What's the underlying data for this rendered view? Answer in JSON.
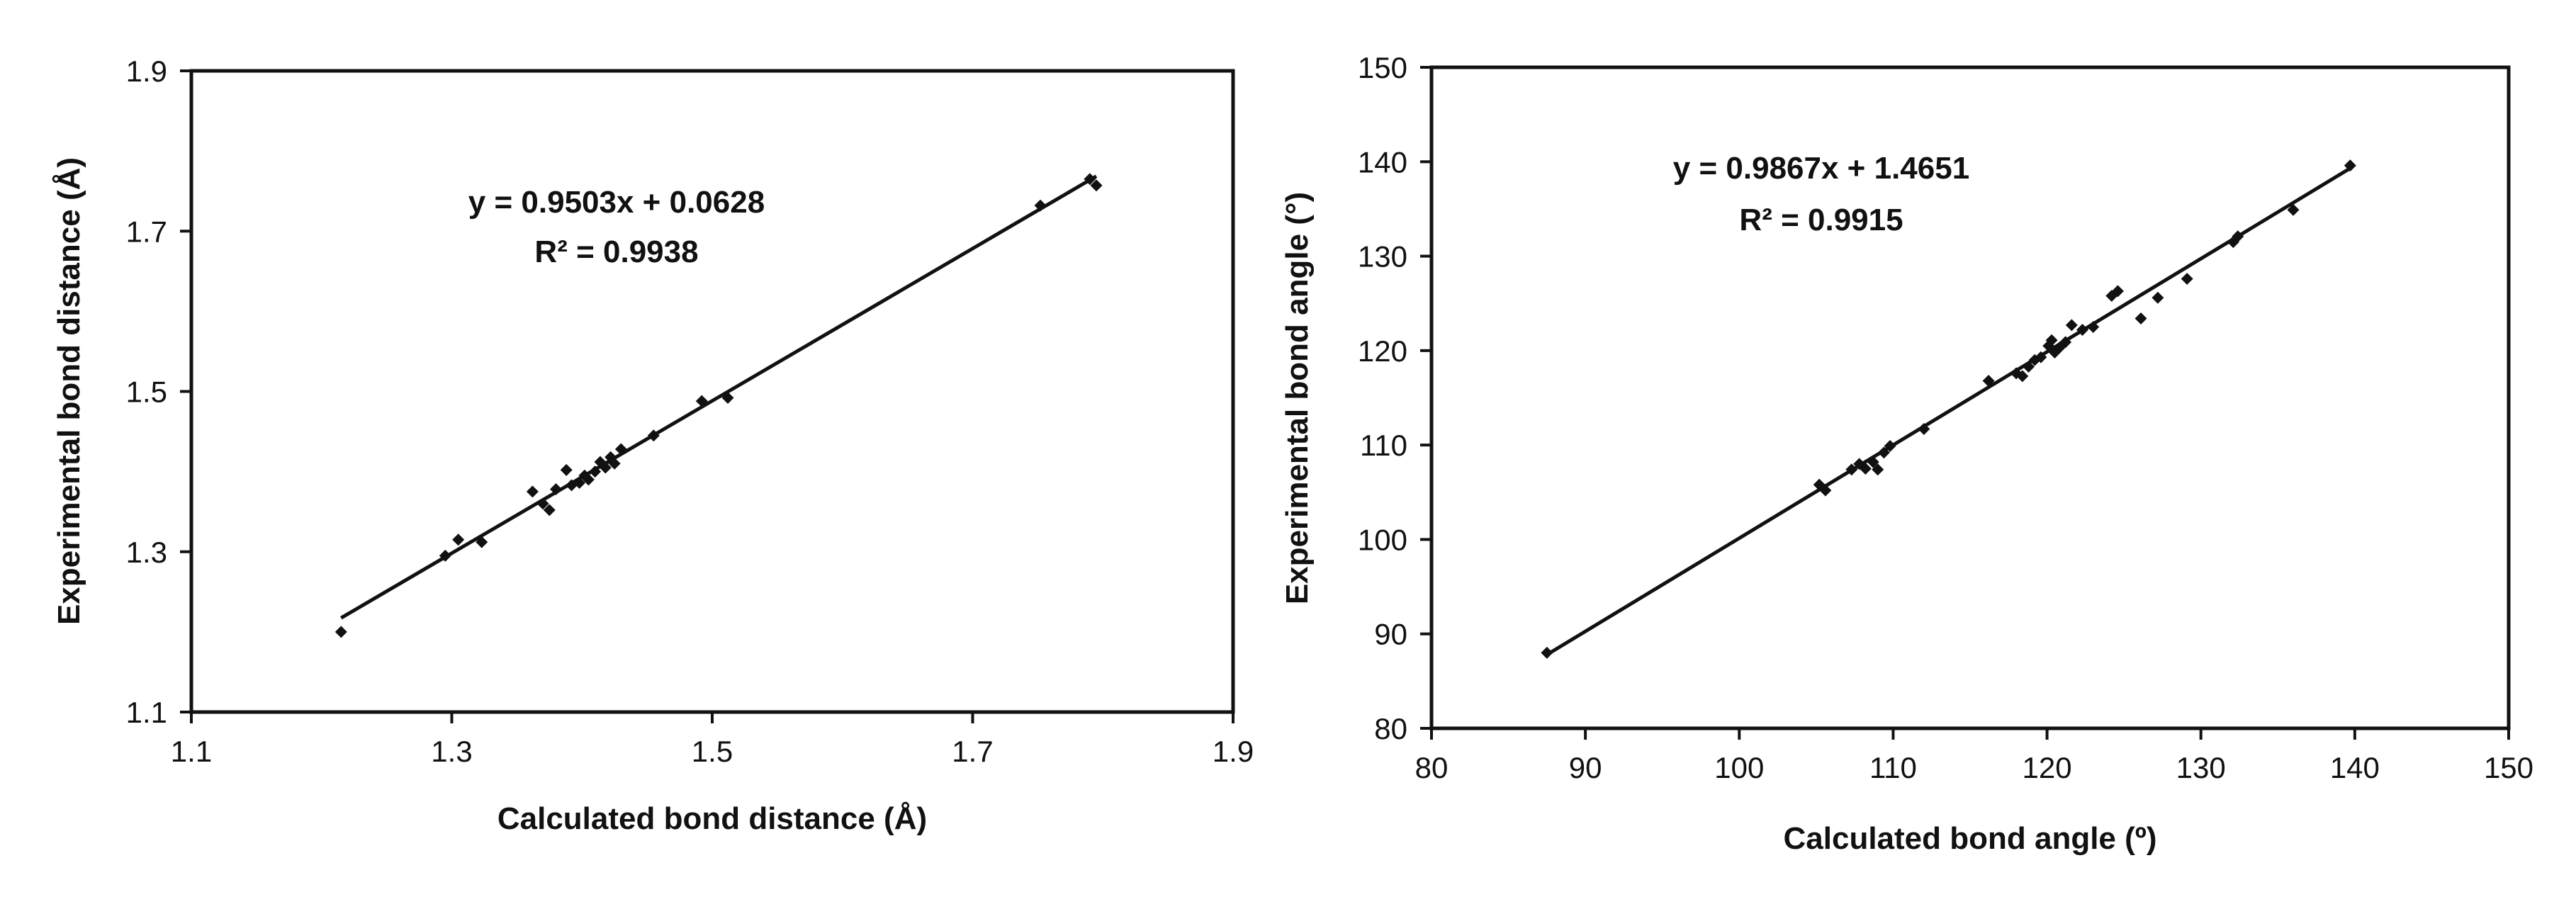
{
  "chart_data": [
    {
      "type": "scatter",
      "xlabel": "Calculated bond distance  (Å)",
      "ylabel": "Experimental bond distance (Å)",
      "xlim": [
        1.1,
        1.9
      ],
      "ylim": [
        1.1,
        1.9
      ],
      "x_ticks": [
        "1.1",
        "1.3",
        "1.5",
        "1.7",
        "1.9"
      ],
      "y_ticks": [
        "1.1",
        "1.3",
        "1.5",
        "1.7",
        "1.9"
      ],
      "grid": false,
      "legend": "none",
      "colors": {
        "points": "#111111",
        "line": "#111111",
        "frame": "#111111"
      },
      "series": [
        {
          "points": [
            [
              1.215,
              1.2
            ],
            [
              1.295,
              1.295
            ],
            [
              1.305,
              1.315
            ],
            [
              1.323,
              1.312
            ],
            [
              1.362,
              1.375
            ],
            [
              1.37,
              1.36
            ],
            [
              1.375,
              1.352
            ],
            [
              1.38,
              1.378
            ],
            [
              1.388,
              1.402
            ],
            [
              1.392,
              1.383
            ],
            [
              1.398,
              1.386
            ],
            [
              1.402,
              1.395
            ],
            [
              1.405,
              1.39
            ],
            [
              1.41,
              1.4
            ],
            [
              1.414,
              1.412
            ],
            [
              1.418,
              1.405
            ],
            [
              1.422,
              1.418
            ],
            [
              1.425,
              1.41
            ],
            [
              1.43,
              1.428
            ],
            [
              1.455,
              1.445
            ],
            [
              1.492,
              1.488
            ],
            [
              1.512,
              1.492
            ],
            [
              1.752,
              1.732
            ],
            [
              1.79,
              1.765
            ],
            [
              1.795,
              1.757
            ]
          ]
        }
      ],
      "trendline": {
        "slope": 0.9503,
        "intercept": 0.0628,
        "x_range": [
          1.215,
          1.795
        ]
      },
      "equation": "y = 0.9503x + 0.0628",
      "r_squared": "R² = 0.9938"
    },
    {
      "type": "scatter",
      "xlabel": "Calculated bond angle  (º)",
      "ylabel": "Experimental bond angle  (°)",
      "xlim": [
        80,
        150
      ],
      "ylim": [
        80,
        150
      ],
      "x_ticks": [
        "80",
        "90",
        "100",
        "110",
        "120",
        "130",
        "140",
        "150"
      ],
      "y_ticks": [
        "80",
        "90",
        "100",
        "110",
        "120",
        "130",
        "140",
        "150"
      ],
      "grid": false,
      "legend": "none",
      "colors": {
        "points": "#111111",
        "line": "#111111",
        "frame": "#111111"
      },
      "series": [
        {
          "points": [
            [
              87.5,
              88.0
            ],
            [
              105.2,
              105.8
            ],
            [
              105.6,
              105.2
            ],
            [
              107.3,
              107.4
            ],
            [
              107.8,
              108.0
            ],
            [
              108.2,
              107.5
            ],
            [
              108.7,
              108.2
            ],
            [
              109.0,
              107.4
            ],
            [
              109.4,
              109.2
            ],
            [
              109.8,
              109.9
            ],
            [
              112.0,
              111.7
            ],
            [
              116.2,
              116.8
            ],
            [
              118.0,
              117.6
            ],
            [
              118.4,
              117.3
            ],
            [
              118.8,
              118.3
            ],
            [
              119.2,
              119.0
            ],
            [
              119.6,
              119.3
            ],
            [
              120.1,
              120.5
            ],
            [
              120.3,
              121.1
            ],
            [
              120.5,
              119.8
            ],
            [
              120.8,
              120.3
            ],
            [
              121.2,
              120.9
            ],
            [
              121.6,
              122.7
            ],
            [
              122.3,
              122.2
            ],
            [
              123.0,
              122.5
            ],
            [
              124.2,
              125.8
            ],
            [
              124.6,
              126.3
            ],
            [
              126.1,
              123.4
            ],
            [
              127.2,
              125.6
            ],
            [
              129.1,
              127.6
            ],
            [
              132.1,
              131.5
            ],
            [
              132.4,
              132.1
            ],
            [
              136.0,
              134.9
            ],
            [
              139.7,
              139.6
            ]
          ]
        }
      ],
      "trendline": {
        "slope": 0.9867,
        "intercept": 1.4651,
        "x_range": [
          87.5,
          139.8
        ]
      },
      "equation": "y = 0.9867x + 1.4651",
      "r_squared": "R² = 0.9915"
    }
  ]
}
